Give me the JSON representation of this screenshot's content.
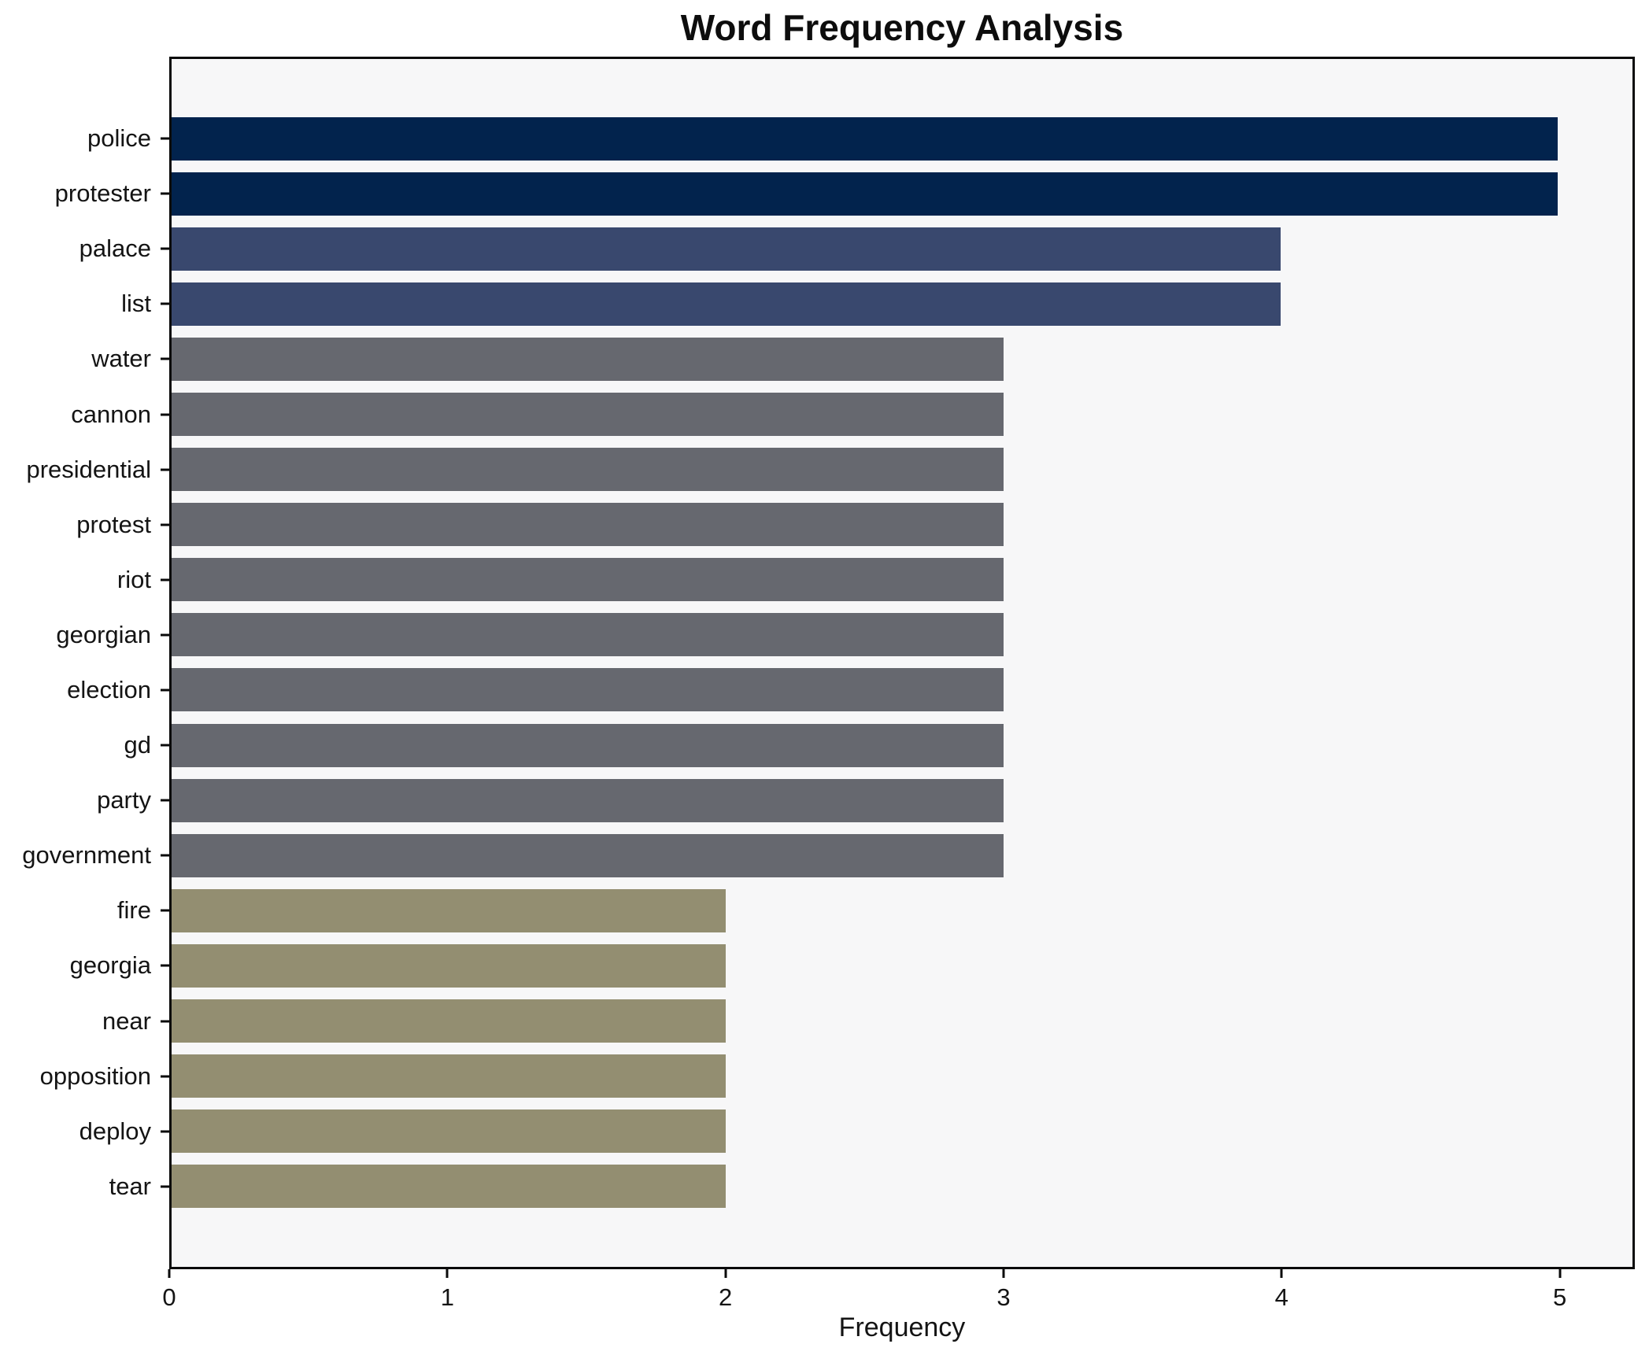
{
  "title": "Word Frequency Analysis",
  "chart_data": {
    "type": "bar",
    "orientation": "horizontal",
    "title": "Word Frequency Analysis",
    "xlabel": "Frequency",
    "ylabel": "",
    "categories": [
      "police",
      "protester",
      "palace",
      "list",
      "water",
      "cannon",
      "presidential",
      "protest",
      "riot",
      "georgian",
      "election",
      "gd",
      "party",
      "government",
      "fire",
      "georgia",
      "near",
      "opposition",
      "deploy",
      "tear"
    ],
    "values": [
      5,
      5,
      4,
      4,
      3,
      3,
      3,
      3,
      3,
      3,
      3,
      3,
      3,
      3,
      2,
      2,
      2,
      2,
      2,
      2
    ],
    "bar_colors": [
      "#02234d",
      "#02234d",
      "#39486e",
      "#39486e",
      "#66686f",
      "#66686f",
      "#66686f",
      "#66686f",
      "#66686f",
      "#66686f",
      "#66686f",
      "#66686f",
      "#66686f",
      "#66686f",
      "#938e71",
      "#938e71",
      "#938e71",
      "#938e71",
      "#938e71",
      "#938e71"
    ],
    "value_color_map": {
      "5": "#02234d",
      "4": "#39486e",
      "3": "#66686f",
      "2": "#938e71"
    },
    "xticks": [
      0,
      1,
      2,
      3,
      4,
      5
    ],
    "xlim": [
      0,
      5.27
    ],
    "grid": false,
    "legend": null,
    "plot_background": "#f7f7f8",
    "figure_background": "#ffffff",
    "spine_color": "#0b0b0b",
    "text_color": "#141414"
  }
}
